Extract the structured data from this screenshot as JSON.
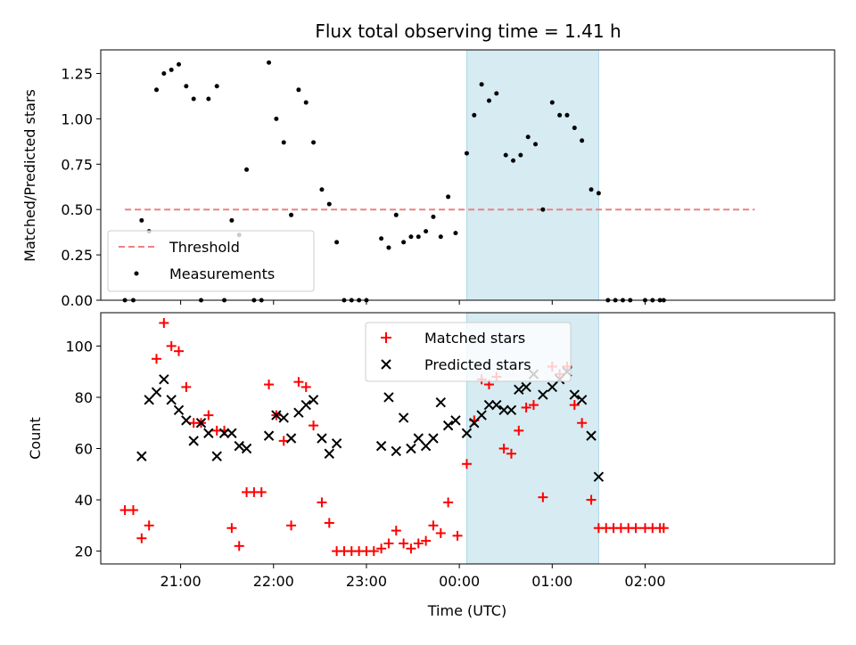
{
  "chart_data": [
    {
      "type": "scatter",
      "title": "Flux total observing time = 1.41 h",
      "xlabel": "",
      "ylabel": "Matched/Predicted stars",
      "xlim": [
        -2.86,
        5.04
      ],
      "ylim": [
        0.0,
        1.38
      ],
      "x_ticks": [
        {
          "value": -2,
          "label": "21:00"
        },
        {
          "value": -1,
          "label": "22:00"
        },
        {
          "value": 0,
          "label": "23:00"
        },
        {
          "value": 1,
          "label": "00:00"
        },
        {
          "value": 2,
          "label": "01:00"
        },
        {
          "value": 3,
          "label": "02:00"
        }
      ],
      "y_ticks": [
        {
          "value": 0.0,
          "label": "0.00"
        },
        {
          "value": 0.25,
          "label": "0.25"
        },
        {
          "value": 0.5,
          "label": "0.50"
        },
        {
          "value": 0.75,
          "label": "0.75"
        },
        {
          "value": 1.0,
          "label": "1.00"
        },
        {
          "value": 1.25,
          "label": "1.25"
        }
      ],
      "highlight_span": {
        "x_start": 1.08,
        "x_end": 2.5,
        "color": "#add8e6"
      },
      "threshold": {
        "name": "Threshold",
        "y": 0.5,
        "x_start": -2.6,
        "x_end": 4.18,
        "color": "#f08080"
      },
      "series": [
        {
          "name": "Measurements",
          "color": "#000000",
          "points": [
            [
              -2.6,
              0.0
            ],
            [
              -2.51,
              0.0
            ],
            [
              -2.42,
              0.44
            ],
            [
              -2.34,
              0.38
            ],
            [
              -2.26,
              1.16
            ],
            [
              -2.18,
              1.25
            ],
            [
              -2.1,
              1.27
            ],
            [
              -2.02,
              1.3
            ],
            [
              -1.94,
              1.18
            ],
            [
              -1.86,
              1.11
            ],
            [
              -1.78,
              0.0
            ],
            [
              -1.7,
              1.11
            ],
            [
              -1.61,
              1.18
            ],
            [
              -1.53,
              0.0
            ],
            [
              -1.45,
              0.44
            ],
            [
              -1.37,
              0.36
            ],
            [
              -1.29,
              0.72
            ],
            [
              -1.21,
              0.0
            ],
            [
              -1.13,
              0.0
            ],
            [
              -1.05,
              1.31
            ],
            [
              -0.97,
              1.0
            ],
            [
              -0.89,
              0.87
            ],
            [
              -0.81,
              0.47
            ],
            [
              -0.73,
              1.16
            ],
            [
              -0.65,
              1.09
            ],
            [
              -0.57,
              0.87
            ],
            [
              -0.48,
              0.61
            ],
            [
              -0.4,
              0.53
            ],
            [
              -0.32,
              0.32
            ],
            [
              -0.24,
              0.0
            ],
            [
              -0.16,
              0.0
            ],
            [
              -0.08,
              0.0
            ],
            [
              0.0,
              0.0
            ],
            [
              0.16,
              0.34
            ],
            [
              0.24,
              0.29
            ],
            [
              0.32,
              0.47
            ],
            [
              0.4,
              0.32
            ],
            [
              0.48,
              0.35
            ],
            [
              0.56,
              0.35
            ],
            [
              0.64,
              0.38
            ],
            [
              0.72,
              0.46
            ],
            [
              0.8,
              0.35
            ],
            [
              0.88,
              0.57
            ],
            [
              0.96,
              0.37
            ],
            [
              1.08,
              0.81
            ],
            [
              1.16,
              1.02
            ],
            [
              1.24,
              1.19
            ],
            [
              1.32,
              1.1
            ],
            [
              1.4,
              1.14
            ],
            [
              1.5,
              0.8
            ],
            [
              1.58,
              0.77
            ],
            [
              1.66,
              0.8
            ],
            [
              1.74,
              0.9
            ],
            [
              1.82,
              0.86
            ],
            [
              1.9,
              0.5
            ],
            [
              2.0,
              1.09
            ],
            [
              2.08,
              1.02
            ],
            [
              2.16,
              1.02
            ],
            [
              2.24,
              0.95
            ],
            [
              2.32,
              0.88
            ],
            [
              2.42,
              0.61
            ],
            [
              2.5,
              0.59
            ],
            [
              2.6,
              0.0
            ],
            [
              2.68,
              0.0
            ],
            [
              2.76,
              0.0
            ],
            [
              2.84,
              0.0
            ],
            [
              3.0,
              0.0
            ],
            [
              3.08,
              0.0
            ],
            [
              3.16,
              0.0
            ],
            [
              3.2,
              0.0
            ]
          ]
        }
      ],
      "legend": {
        "position": "lower-left",
        "entries": [
          "Threshold",
          "Measurements"
        ]
      }
    },
    {
      "type": "scatter",
      "title": "",
      "xlabel": "Time (UTC)",
      "ylabel": "Count",
      "xlim": [
        -2.86,
        5.04
      ],
      "ylim": [
        15,
        113
      ],
      "x_ticks": [
        {
          "value": -2,
          "label": "21:00"
        },
        {
          "value": -1,
          "label": "22:00"
        },
        {
          "value": 0,
          "label": "23:00"
        },
        {
          "value": 1,
          "label": "00:00"
        },
        {
          "value": 2,
          "label": "01:00"
        },
        {
          "value": 3,
          "label": "02:00"
        }
      ],
      "y_ticks": [
        {
          "value": 20,
          "label": "20"
        },
        {
          "value": 40,
          "label": "40"
        },
        {
          "value": 60,
          "label": "60"
        },
        {
          "value": 80,
          "label": "80"
        },
        {
          "value": 100,
          "label": "100"
        }
      ],
      "highlight_span": {
        "x_start": 1.08,
        "x_end": 2.5,
        "color": "#add8e6"
      },
      "series": [
        {
          "name": "Matched stars",
          "marker": "plus",
          "color": "#ff0000",
          "points": [
            [
              -2.6,
              36
            ],
            [
              -2.51,
              36
            ],
            [
              -2.42,
              25
            ],
            [
              -2.34,
              30
            ],
            [
              -2.26,
              95
            ],
            [
              -2.18,
              109
            ],
            [
              -2.1,
              100
            ],
            [
              -2.02,
              98
            ],
            [
              -1.94,
              84
            ],
            [
              -1.86,
              70
            ],
            [
              -1.78,
              70
            ],
            [
              -1.7,
              73
            ],
            [
              -1.61,
              67
            ],
            [
              -1.53,
              67
            ],
            [
              -1.45,
              29
            ],
            [
              -1.37,
              22
            ],
            [
              -1.29,
              43
            ],
            [
              -1.21,
              43
            ],
            [
              -1.13,
              43
            ],
            [
              -1.05,
              85
            ],
            [
              -0.97,
              73
            ],
            [
              -0.89,
              63
            ],
            [
              -0.81,
              30
            ],
            [
              -0.73,
              86
            ],
            [
              -0.65,
              84
            ],
            [
              -0.57,
              69
            ],
            [
              -0.48,
              39
            ],
            [
              -0.4,
              31
            ],
            [
              -0.32,
              20
            ],
            [
              -0.24,
              20
            ],
            [
              -0.16,
              20
            ],
            [
              -0.08,
              20
            ],
            [
              0.0,
              20
            ],
            [
              0.08,
              20
            ],
            [
              0.16,
              21
            ],
            [
              0.24,
              23
            ],
            [
              0.32,
              28
            ],
            [
              0.4,
              23
            ],
            [
              0.48,
              21
            ],
            [
              0.56,
              23
            ],
            [
              0.64,
              24
            ],
            [
              0.72,
              30
            ],
            [
              0.8,
              27
            ],
            [
              0.88,
              39
            ],
            [
              0.98,
              26
            ],
            [
              1.08,
              54
            ],
            [
              1.16,
              71
            ],
            [
              1.24,
              87
            ],
            [
              1.32,
              85
            ],
            [
              1.4,
              88
            ],
            [
              1.48,
              60
            ],
            [
              1.56,
              58
            ],
            [
              1.64,
              67
            ],
            [
              1.72,
              76
            ],
            [
              1.8,
              77
            ],
            [
              1.9,
              41
            ],
            [
              2.0,
              92
            ],
            [
              2.08,
              89
            ],
            [
              2.16,
              92
            ],
            [
              2.24,
              77
            ],
            [
              2.32,
              70
            ],
            [
              2.42,
              40
            ],
            [
              2.5,
              29
            ],
            [
              2.58,
              29
            ],
            [
              2.66,
              29
            ],
            [
              2.74,
              29
            ],
            [
              2.82,
              29
            ],
            [
              2.9,
              29
            ],
            [
              3.0,
              29
            ],
            [
              3.08,
              29
            ],
            [
              3.16,
              29
            ],
            [
              3.2,
              29
            ]
          ]
        },
        {
          "name": "Predicted stars",
          "marker": "x",
          "color": "#000000",
          "points": [
            [
              -2.42,
              57
            ],
            [
              -2.34,
              79
            ],
            [
              -2.26,
              82
            ],
            [
              -2.18,
              87
            ],
            [
              -2.1,
              79
            ],
            [
              -2.02,
              75
            ],
            [
              -1.94,
              71
            ],
            [
              -1.86,
              63
            ],
            [
              -1.78,
              70
            ],
            [
              -1.7,
              66
            ],
            [
              -1.61,
              57
            ],
            [
              -1.53,
              66
            ],
            [
              -1.45,
              66
            ],
            [
              -1.37,
              61
            ],
            [
              -1.29,
              60
            ],
            [
              -1.05,
              65
            ],
            [
              -0.97,
              73
            ],
            [
              -0.89,
              72
            ],
            [
              -0.81,
              64
            ],
            [
              -0.73,
              74
            ],
            [
              -0.65,
              77
            ],
            [
              -0.57,
              79
            ],
            [
              -0.48,
              64
            ],
            [
              -0.4,
              58
            ],
            [
              -0.32,
              62
            ],
            [
              0.16,
              61
            ],
            [
              0.24,
              80
            ],
            [
              0.32,
              59
            ],
            [
              0.4,
              72
            ],
            [
              0.48,
              60
            ],
            [
              0.56,
              64
            ],
            [
              0.64,
              61
            ],
            [
              0.72,
              64
            ],
            [
              0.8,
              78
            ],
            [
              0.88,
              69
            ],
            [
              0.96,
              71
            ],
            [
              1.08,
              66
            ],
            [
              1.16,
              70
            ],
            [
              1.24,
              73
            ],
            [
              1.32,
              77
            ],
            [
              1.4,
              77
            ],
            [
              1.48,
              75
            ],
            [
              1.56,
              75
            ],
            [
              1.64,
              83
            ],
            [
              1.72,
              84
            ],
            [
              1.8,
              89
            ],
            [
              1.9,
              81
            ],
            [
              2.0,
              84
            ],
            [
              2.08,
              87
            ],
            [
              2.16,
              90
            ],
            [
              2.24,
              81
            ],
            [
              2.32,
              79
            ],
            [
              2.42,
              65
            ],
            [
              2.5,
              49
            ]
          ]
        }
      ],
      "legend": {
        "position": "upper-center",
        "entries": [
          "Matched stars",
          "Predicted stars"
        ]
      }
    }
  ]
}
